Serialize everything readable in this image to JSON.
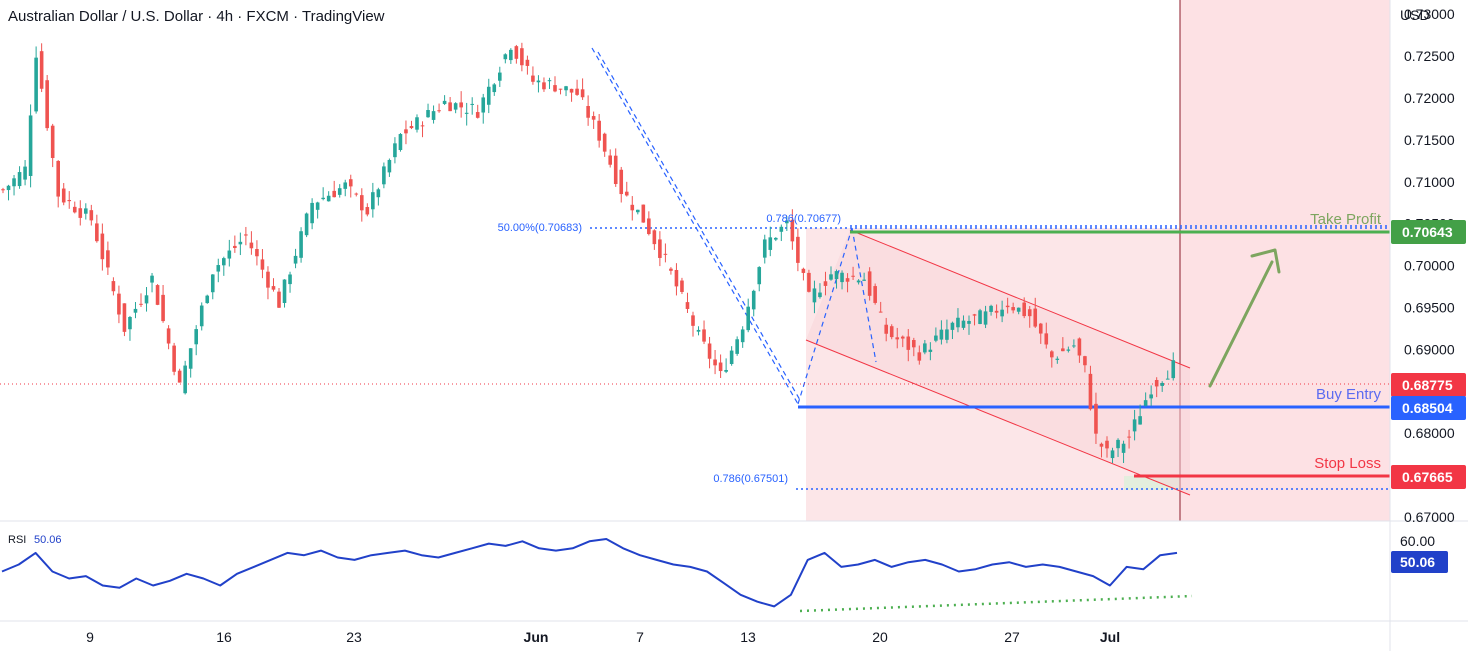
{
  "header": {
    "title": "Australian Dollar / U.S. Dollar · 4h · FXCM · TradingView"
  },
  "price_axis": {
    "currency": "USD",
    "ticks": [
      "0.73000",
      "0.72500",
      "0.72000",
      "0.71500",
      "0.71000",
      "0.70500",
      "0.70000",
      "0.69500",
      "0.69000",
      "0.68500",
      "0.68000",
      "0.67500",
      "0.67000"
    ]
  },
  "rsi_axis": {
    "ticks": [
      "60.00"
    ]
  },
  "time_axis": {
    "labels": [
      "9",
      "16",
      "23",
      "Jun",
      "7",
      "13",
      "20",
      "27",
      "Jul"
    ]
  },
  "levels": {
    "take_profit": {
      "label": "Take Profit",
      "value": "0.70643",
      "color": "#4caf50"
    },
    "buy_entry": {
      "label": "Buy Entry",
      "value": "0.68504",
      "color": "#2962ff"
    },
    "stop_loss": {
      "label": "Stop Loss",
      "value": "0.67665",
      "color": "#f23645"
    },
    "current": {
      "value": "0.68775",
      "color": "#f23645"
    }
  },
  "fib_labels": {
    "fib_50": "50.00%(0.70683)",
    "fib_786_top": "0.786(0.70677)",
    "fib_786_bottom": "0.786(0.67501)"
  },
  "rsi": {
    "label": "RSI",
    "value": "50.06",
    "badge": "50.06",
    "color": "#2141c9"
  },
  "colors": {
    "up": "#26a69a",
    "down": "#ef5350",
    "accent_blue": "#2962ff",
    "zone_red": "#fde1e4"
  },
  "chart_data": [
    {
      "type": "candlestick",
      "title": "Australian Dollar / U.S. Dollar · 4h · FXCM · TradingView",
      "y_unit": "USD",
      "ylim": [
        0.6695,
        0.7317
      ],
      "x_labels": [
        "9",
        "16",
        "23",
        "Jun",
        "7",
        "13",
        "20",
        "27",
        "Jul"
      ],
      "close_path": [
        [
          0,
          0.709
        ],
        [
          4,
          0.7115
        ],
        [
          6,
          0.7255
        ],
        [
          10,
          0.7085
        ],
        [
          16,
          0.7055
        ],
        [
          22,
          0.6925
        ],
        [
          27,
          0.6985
        ],
        [
          32,
          0.6855
        ],
        [
          38,
          0.6995
        ],
        [
          44,
          0.7035
        ],
        [
          50,
          0.6955
        ],
        [
          56,
          0.7075
        ],
        [
          62,
          0.7095
        ],
        [
          66,
          0.7065
        ],
        [
          72,
          0.7155
        ],
        [
          80,
          0.7195
        ],
        [
          86,
          0.7185
        ],
        [
          92,
          0.7265
        ],
        [
          96,
          0.722
        ],
        [
          100,
          0.7215
        ],
        [
          104,
          0.7205
        ],
        [
          108,
          0.7155
        ],
        [
          112,
          0.709
        ],
        [
          116,
          0.7055
        ],
        [
          120,
          0.7005
        ],
        [
          126,
          0.6915
        ],
        [
          130,
          0.6868
        ],
        [
          134,
          0.693
        ],
        [
          138,
          0.7025
        ],
        [
          142,
          0.705
        ],
        [
          146,
          0.696
        ],
        [
          150,
          0.699
        ],
        [
          156,
          0.6985
        ],
        [
          160,
          0.692
        ],
        [
          166,
          0.6895
        ],
        [
          172,
          0.6928
        ],
        [
          178,
          0.694
        ],
        [
          182,
          0.6955
        ],
        [
          186,
          0.694
        ],
        [
          190,
          0.689
        ],
        [
          194,
          0.6905
        ],
        [
          196,
          0.6875
        ],
        [
          198,
          0.6795
        ],
        [
          200,
          0.6775
        ],
        [
          204,
          0.6795
        ],
        [
          208,
          0.6855
        ],
        [
          212,
          0.688
        ]
      ],
      "last_price": 0.68775,
      "levels": {
        "take_profit": 0.70643,
        "buy_entry": 0.68504,
        "stop_loss": 0.67665
      },
      "fibonacci": {
        "50.00%": 0.70683,
        "0.786_upper": 0.70677,
        "0.786_lower": 0.67501
      }
    },
    {
      "type": "line",
      "title": "RSI",
      "last_value": 50.06,
      "ticks": [
        60.0
      ],
      "series": [
        {
          "name": "RSI",
          "values": [
            50,
            53,
            58,
            50,
            47,
            48,
            44,
            43,
            47,
            44,
            46,
            49,
            47,
            44,
            49,
            52,
            55,
            58,
            57,
            59,
            56,
            55,
            57,
            58,
            59,
            57,
            56,
            58,
            60,
            62,
            61,
            63,
            60,
            59,
            60,
            63,
            64,
            60,
            57,
            55,
            53,
            52,
            50,
            45,
            40,
            37,
            35,
            40,
            55,
            58,
            52,
            53,
            55,
            52,
            54,
            55,
            53,
            50,
            51,
            53,
            54,
            52,
            53,
            52,
            50,
            48,
            44,
            52,
            51,
            57,
            58
          ]
        }
      ],
      "annotations": [
        "rising support trendline (dotted green)"
      ]
    }
  ]
}
